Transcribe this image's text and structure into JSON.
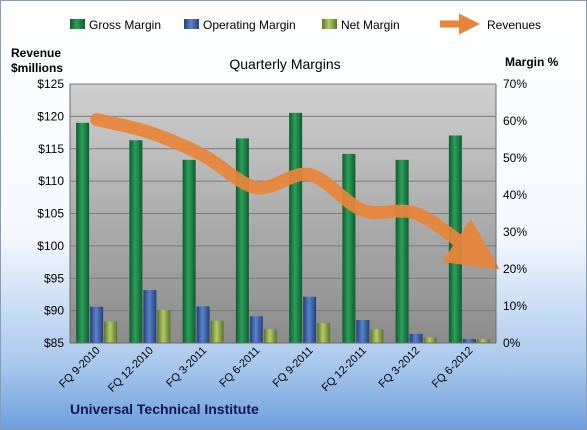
{
  "chart_data": {
    "type": "bar",
    "title": "Quarterly Margins",
    "footer": "Universal Technical Institute",
    "left_axis": {
      "label_line1": "Revenue",
      "label_line2": "$millions",
      "ylim": [
        85,
        125
      ],
      "ticks": [
        "$85",
        "$90",
        "$95",
        "$100",
        "$105",
        "$110",
        "$115",
        "$120",
        "$125"
      ]
    },
    "right_axis": {
      "label": "Margin %",
      "ylim": [
        0,
        70
      ],
      "ticks": [
        "0%",
        "10%",
        "20%",
        "30%",
        "40%",
        "50%",
        "60%",
        "70%"
      ]
    },
    "categories": [
      "FQ 9-2010",
      "FQ 12-2010",
      "FQ 3-2011",
      "FQ 6-2011",
      "FQ 9-2011",
      "FQ 12-2011",
      "FQ 3-2012",
      "FQ 6-2012"
    ],
    "series": [
      {
        "name": "Gross Margin",
        "axis": "right",
        "kind": "bar",
        "color": "#1f8a4a",
        "values": [
          59.5,
          54.8,
          49.5,
          55.3,
          62.2,
          51.1,
          49.5,
          56.1
        ]
      },
      {
        "name": "Operating Margin",
        "axis": "right",
        "kind": "bar",
        "color": "#3f66b4",
        "values": [
          9.8,
          14.3,
          9.9,
          7.2,
          12.5,
          6.2,
          2.5,
          1.1
        ]
      },
      {
        "name": "Net Margin",
        "axis": "right",
        "kind": "bar",
        "color": "#8fac4a",
        "values": [
          5.8,
          8.9,
          6.0,
          3.7,
          5.4,
          3.7,
          1.5,
          1.0
        ]
      },
      {
        "name": "Revenues",
        "axis": "left",
        "kind": "line",
        "color": "#e8853a",
        "values": [
          119.5,
          117.5,
          114.0,
          109.0,
          111.0,
          105.5,
          105.0,
          99.5
        ]
      }
    ],
    "grid": true,
    "legend_position": "top"
  }
}
